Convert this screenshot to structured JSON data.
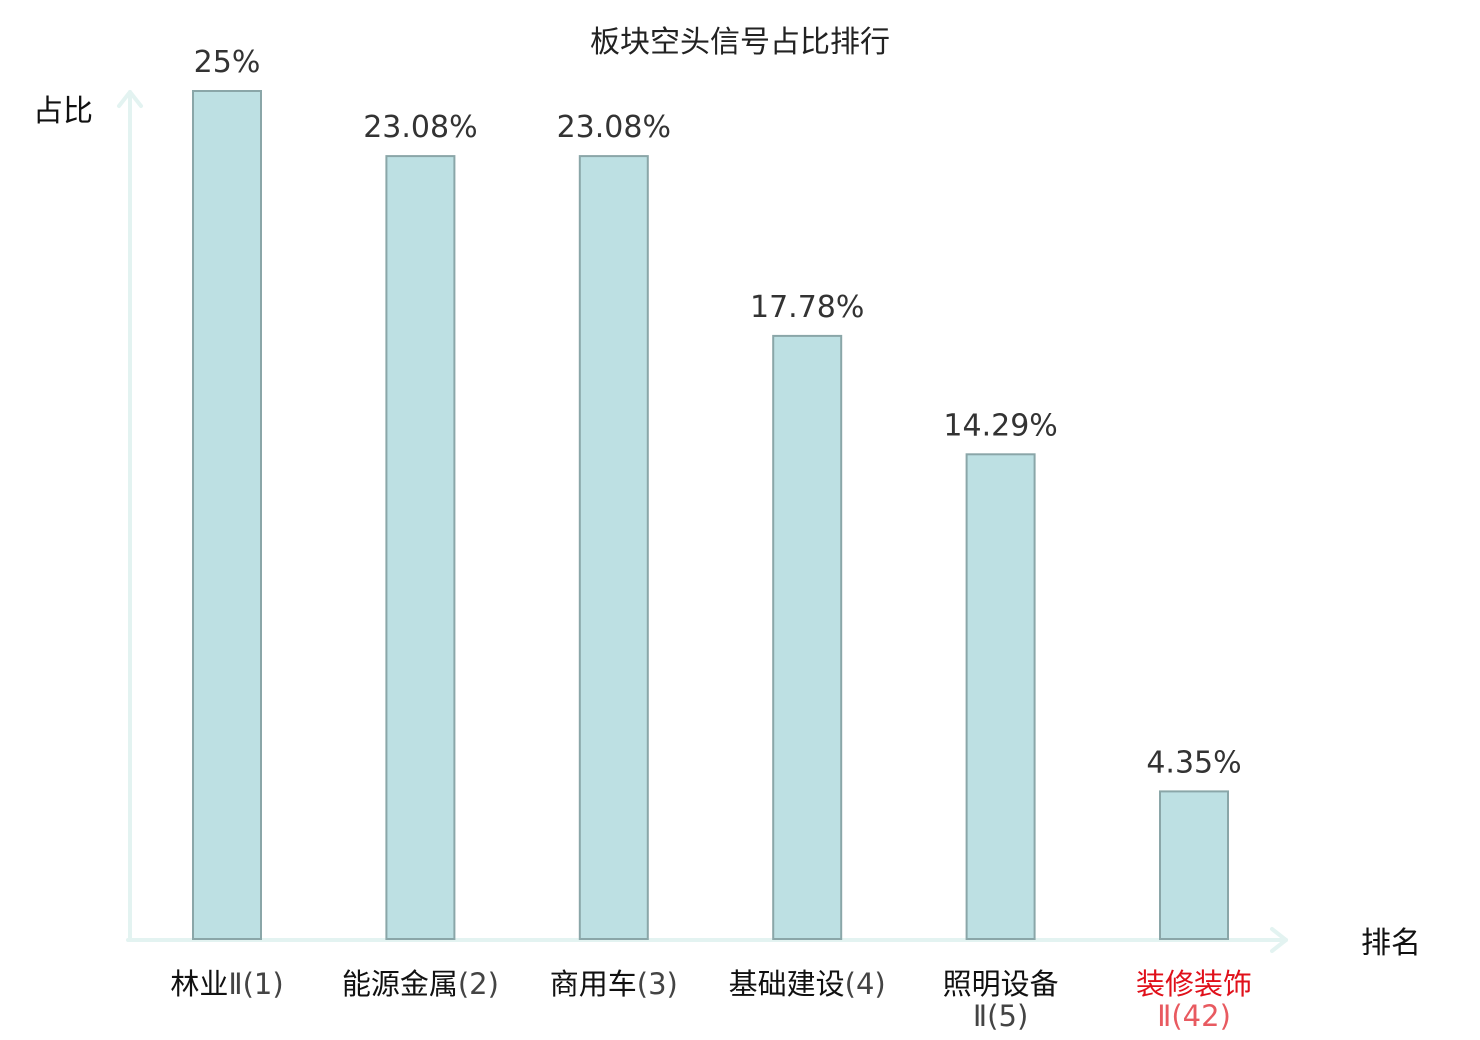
{
  "chart_data": {
    "type": "bar",
    "title": "板块空头信号占比排行",
    "ylabel": "占比",
    "xlabel": "排名",
    "ylim": [
      0,
      25
    ],
    "grid": false,
    "categories": [
      {
        "name": "林业",
        "rank": "Ⅱ(1)",
        "highlight": false
      },
      {
        "name": "能源金属",
        "rank": "(2)",
        "highlight": false
      },
      {
        "name": "商用车",
        "rank": "(3)",
        "highlight": false
      },
      {
        "name": "基础建设",
        "rank": "(4)",
        "highlight": false
      },
      {
        "name": "照明设备",
        "rank": "Ⅱ(5)",
        "highlight": false
      },
      {
        "name": "装修装饰",
        "rank": "Ⅱ(42)",
        "highlight": true
      }
    ],
    "values": [
      25,
      23.08,
      23.08,
      17.78,
      14.29,
      4.35
    ],
    "value_labels": [
      "25%",
      "23.08%",
      "23.08%",
      "17.78%",
      "14.29%",
      "4.35%"
    ]
  },
  "colors": {
    "bar_fill": "#bde0e3",
    "bar_stroke": "#8aa6a8",
    "axis": "#e3f3f1",
    "highlight_name": "#e0101a",
    "highlight_rank": "#e85a60",
    "rank_normal": "#444444",
    "name_normal": "#111111"
  }
}
